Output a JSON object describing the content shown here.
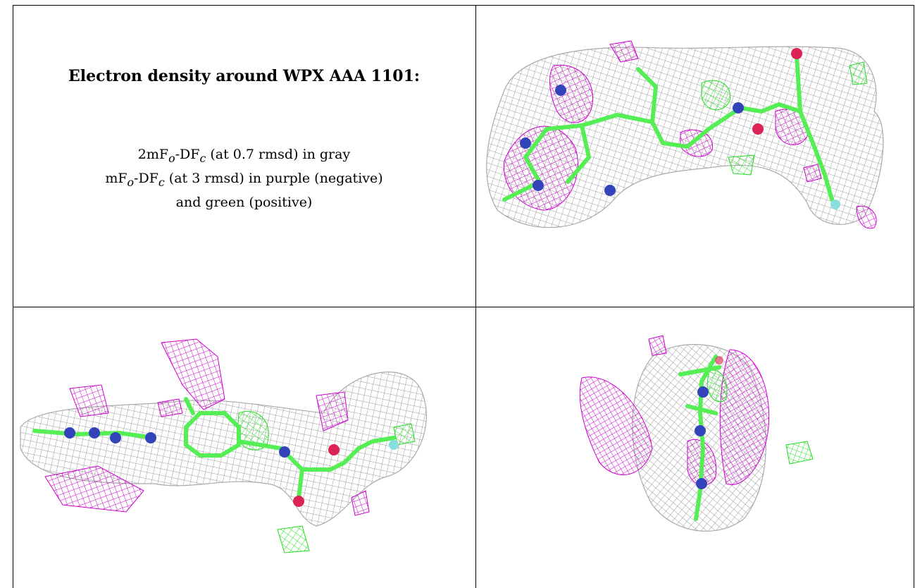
{
  "legend": {
    "title": "Electron density around WPX AAA 1101:",
    "line1": {
      "prefix": "2mF",
      "sub1": "o",
      "mid": "-DF",
      "sub2": "c",
      "suffix": " (at 0.7 rmsd) in gray"
    },
    "line2": {
      "prefix": "mF",
      "sub1": "o",
      "mid": "-DF",
      "sub2": "c",
      "suffix": " (at 3 rmsd) in purple (negative)"
    },
    "line3": "and green (positive)"
  },
  "colors": {
    "mesh_2fofc": "#9a9a9a",
    "mesh_negative": "#cc00cc",
    "mesh_positive": "#22dd22",
    "carbon": "#55ee55",
    "nitrogen": "#3344bb",
    "oxygen": "#dd2255",
    "fluorine": "#88dddd"
  },
  "panels": [
    "view-top-right",
    "view-bottom-left",
    "view-bottom-right"
  ]
}
